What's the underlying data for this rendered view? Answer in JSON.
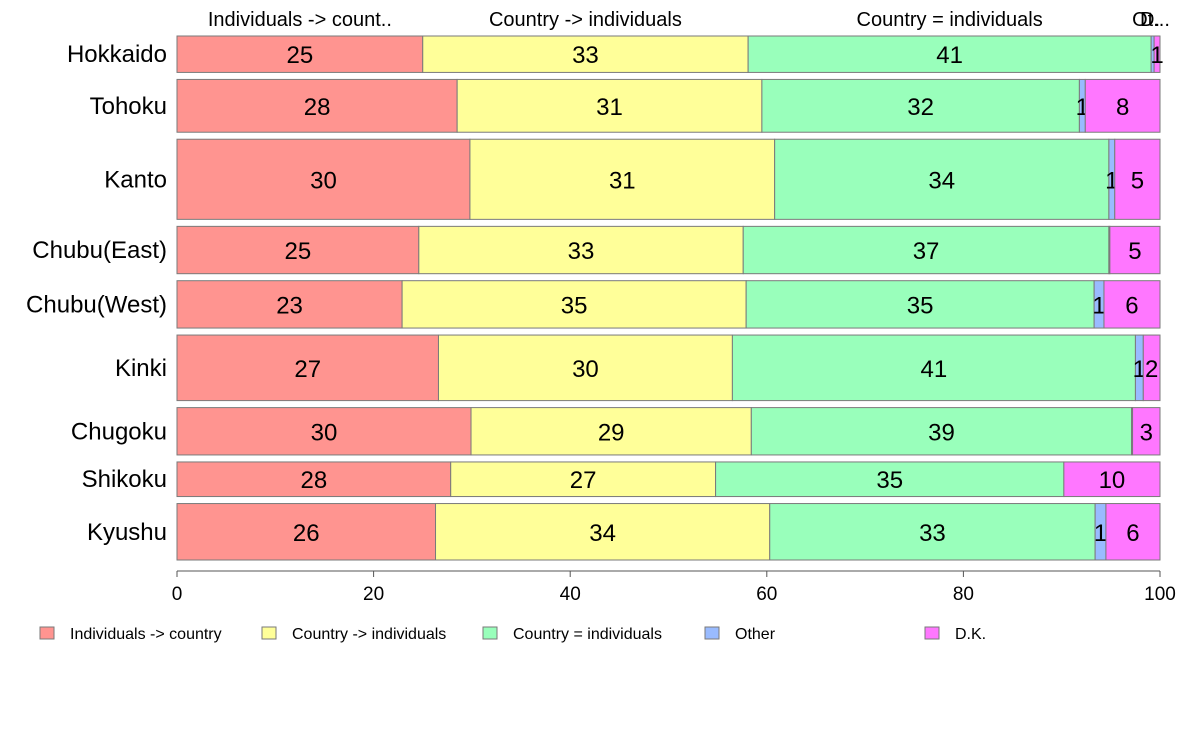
{
  "chart_data": {
    "type": "bar",
    "orientation": "horizontal",
    "stacked": "percent",
    "categories": [
      "Hokkaido",
      "Tohoku",
      "Kanto",
      "Chubu(East)",
      "Chubu(West)",
      "Kinki",
      "Chugoku",
      "Shikoku",
      "Kyushu"
    ],
    "category_weights": [
      1.0,
      1.45,
      2.2,
      1.3,
      1.3,
      1.8,
      1.3,
      0.95,
      1.55
    ],
    "series": [
      {
        "name": "Individuals -> country",
        "color": "#ff9490",
        "values": [
          25,
          28.5,
          29.8,
          24.6,
          22.9,
          26.6,
          30.0,
          27.9,
          26.3
        ],
        "labels": [
          "25",
          "28",
          "30",
          "25",
          "23",
          "27",
          "30",
          "28",
          "26"
        ]
      },
      {
        "name": "Country -> individuals",
        "color": "#ffff99",
        "values": [
          33.1,
          31.0,
          31.0,
          33.0,
          35.0,
          29.9,
          28.6,
          27.0,
          34.0
        ],
        "labels": [
          "33",
          "31",
          "31",
          "33",
          "35",
          "30",
          "29",
          "27",
          "34"
        ]
      },
      {
        "name": "Country = individuals",
        "color": "#99ffbb",
        "values": [
          41.0,
          32.3,
          34.0,
          37.2,
          35.4,
          41.0,
          38.8,
          35.5,
          33.1
        ],
        "labels": [
          "41",
          "32",
          "34",
          "37",
          "35",
          "41",
          "39",
          "35",
          "33"
        ]
      },
      {
        "name": "Other",
        "color": "#99bbff",
        "values": [
          0.3,
          0.6,
          0.6,
          0.1,
          1.0,
          0.8,
          0.1,
          0.0,
          1.1
        ],
        "labels": [
          "",
          "1",
          "1",
          "",
          "1",
          "1",
          "",
          "",
          "1"
        ]
      },
      {
        "name": "D.K.",
        "color": "#ff77ff",
        "values": [
          0.6,
          7.6,
          4.6,
          5.1,
          5.7,
          1.7,
          2.8,
          9.8,
          5.5
        ],
        "labels": [
          "1",
          "8",
          "5",
          "5",
          "6",
          "2",
          "3",
          "10",
          "6"
        ]
      }
    ],
    "top_labels": [
      "Individuals -> count..",
      "Country -> individuals",
      "Country = individuals",
      "Ot..."
    ],
    "top_label_dk": "D.",
    "xticks": [
      "0",
      "20",
      "40",
      "60",
      "80",
      "100"
    ],
    "xlim": [
      0,
      100
    ],
    "grid": false,
    "legend_position": "bottom"
  }
}
